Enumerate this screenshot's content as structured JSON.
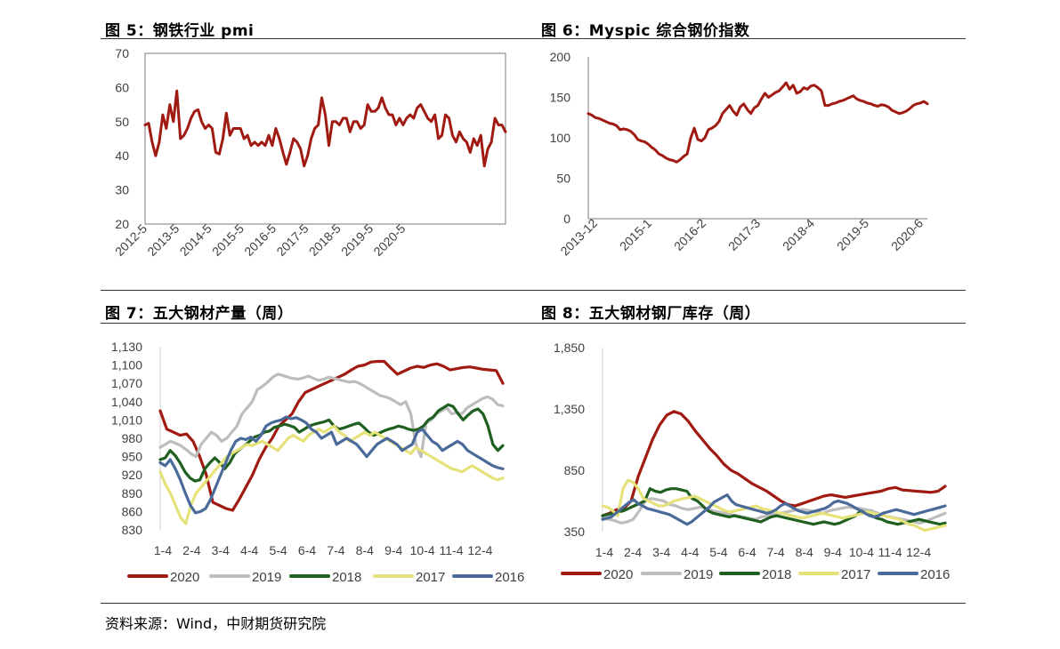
{
  "panels": [
    {
      "title": "图 5：钢铁行业 pmi"
    },
    {
      "title": "图 6：Myspic 综合钢价指数"
    },
    {
      "title": "图 7：五大钢材产量（周）"
    },
    {
      "title": "图 8：五大钢材钢厂库存（周）"
    }
  ],
  "source": "资料来源：Wind，中财期货研究院",
  "chart_data": [
    {
      "type": "line",
      "title": "",
      "xlabel": "",
      "ylabel": "",
      "ylim": [
        20,
        70
      ],
      "yticks": [
        "70",
        "60",
        "50",
        "40",
        "30",
        "20"
      ],
      "xticks": [
        "2012-5",
        "2013-5",
        "2014-5",
        "2015-5",
        "2016-5",
        "2017-5",
        "2018-5",
        "2019-5",
        "2020-5"
      ],
      "legend": "none",
      "grid": false,
      "series": [
        {
          "color": "#a01a12",
          "values": [
            49,
            49.5,
            44,
            40,
            44,
            52,
            48,
            55,
            50,
            59,
            45,
            46,
            48,
            51,
            53,
            53.5,
            50,
            48,
            49,
            48,
            41,
            40.5,
            45,
            52.5,
            46,
            48,
            48,
            48,
            45,
            46,
            43,
            44,
            43,
            44,
            43,
            46,
            43,
            48,
            45,
            41,
            37.5,
            41,
            45,
            44,
            42,
            37,
            40,
            45,
            48,
            49,
            57,
            52,
            43,
            50,
            50,
            49,
            51,
            51,
            47,
            50,
            50,
            48,
            49,
            55,
            53,
            53,
            54,
            57,
            54,
            52,
            52,
            49,
            51,
            49,
            51,
            52,
            51,
            54,
            55,
            53,
            51,
            50,
            52,
            45,
            46,
            52,
            51,
            46,
            44,
            47,
            45,
            44,
            41,
            45,
            43,
            46,
            37,
            42,
            44,
            51,
            49,
            49,
            47
          ]
        }
      ]
    },
    {
      "type": "line",
      "title": "",
      "xlabel": "",
      "ylabel": "",
      "ylim": [
        0,
        200
      ],
      "yticks": [
        "200",
        "150",
        "100",
        "50",
        "0"
      ],
      "xticks": [
        "2013-12",
        "2015-1",
        "2016-2",
        "2017-3",
        "2018-4",
        "2019-5",
        "2020-6"
      ],
      "legend": "none",
      "grid": false,
      "series": [
        {
          "color": "#a01a12",
          "values": [
            130,
            128,
            125,
            124,
            122,
            120,
            118,
            117,
            115,
            110,
            111,
            110,
            108,
            104,
            98,
            96,
            95,
            92,
            88,
            85,
            80,
            78,
            75,
            73,
            72,
            70,
            73,
            77,
            80,
            100,
            112,
            98,
            96,
            100,
            110,
            112,
            115,
            120,
            130,
            135,
            140,
            133,
            128,
            138,
            142,
            135,
            130,
            137,
            140,
            148,
            155,
            150,
            153,
            156,
            158,
            163,
            168,
            160,
            165,
            155,
            157,
            162,
            160,
            164,
            165,
            162,
            158,
            140,
            140,
            142,
            143,
            145,
            146,
            148,
            150,
            152,
            148,
            146,
            145,
            143,
            142,
            140,
            139,
            141,
            140,
            138,
            134,
            132,
            130,
            131,
            133,
            136,
            140,
            142,
            143,
            145,
            142
          ]
        }
      ]
    },
    {
      "type": "line",
      "title": "",
      "xlabel": "",
      "ylabel": "",
      "ylim": [
        830,
        1130
      ],
      "yticks": [
        "1,130",
        "1,100",
        "1,070",
        "1,040",
        "1,010",
        "980",
        "950",
        "920",
        "890",
        "860",
        "830"
      ],
      "xticks": [
        "1-4",
        "2-4",
        "3-4",
        "4-4",
        "5-4",
        "6-4",
        "7-4",
        "8-4",
        "9-4",
        "10-4",
        "11-4",
        "12-4"
      ],
      "legend": "bottom",
      "grid": false,
      "series": [
        {
          "name": "2020",
          "color": "#a01a12",
          "values": [
            1025,
            995,
            990,
            985,
            987,
            975,
            950,
            920,
            875,
            870,
            865,
            862,
            880,
            900,
            920,
            945,
            965,
            980,
            1000,
            1010,
            1020,
            1040,
            1055,
            1060,
            1065,
            1070,
            1075,
            1080,
            1085,
            1092,
            1098,
            1100,
            1105,
            1106,
            1106,
            1095,
            1085,
            1090,
            1095,
            1098,
            1096,
            1100,
            1102,
            1098,
            1092,
            1094,
            1096,
            1097,
            1095,
            1093,
            1092,
            1091,
            1070
          ]
        },
        {
          "name": "2019",
          "color": "#bdbdbd",
          "values": [
            965,
            970,
            975,
            972,
            968,
            962,
            955,
            950,
            970,
            980,
            990,
            985,
            975,
            980,
            990,
            1000,
            1020,
            1030,
            1040,
            1060,
            1065,
            1072,
            1080,
            1085,
            1083,
            1080,
            1078,
            1077,
            1079,
            1082,
            1078,
            1075,
            1077,
            1080,
            1078,
            1076,
            1074,
            1072,
            1073,
            1070,
            1065,
            1060,
            1055,
            1050,
            1048,
            1045,
            1040,
            1035,
            1040,
            1020,
            970,
            950,
            1005,
            1010,
            1020,
            1025,
            1030,
            1020,
            1022,
            1020,
            1030,
            1035,
            1040,
            1045,
            1048,
            1044,
            1035,
            1033
          ]
        },
        {
          "name": "2018",
          "color": "#1f5f1f",
          "values": [
            945,
            948,
            960,
            952,
            940,
            925,
            915,
            910,
            912,
            930,
            940,
            948,
            940,
            930,
            940,
            955,
            962,
            968,
            975,
            982,
            985,
            990,
            992,
            998,
            1000,
            1003,
            1001,
            998,
            990,
            995,
            1000,
            1003,
            1005,
            1007,
            1010,
            1000,
            995,
            997,
            1000,
            1003,
            1005,
            998,
            990,
            985,
            988,
            992,
            995,
            997,
            1000,
            998,
            995,
            993,
            995,
            1000,
            1010,
            1015,
            1025,
            1030,
            1035,
            1032,
            1020,
            1010,
            1018,
            1025,
            1028,
            1020,
            1000,
            970,
            960,
            968
          ]
        },
        {
          "name": "2017",
          "color": "#e6e27a",
          "values": [
            925,
            905,
            890,
            870,
            850,
            840,
            870,
            890,
            900,
            910,
            920,
            930,
            940,
            950,
            955,
            960,
            965,
            970,
            968,
            972,
            975,
            970,
            965,
            960,
            970,
            980,
            985,
            980,
            975,
            985,
            990,
            995,
            990,
            995,
            1000,
            990,
            985,
            975,
            980,
            985,
            990,
            985,
            990,
            985,
            980,
            975,
            970,
            965,
            960,
            955,
            965,
            960,
            955,
            950,
            945,
            940,
            935,
            930,
            928,
            925,
            930,
            935,
            930,
            925,
            920,
            915,
            912,
            915
          ]
        },
        {
          "name": "2016",
          "color": "#4a6a9a",
          "values": [
            940,
            935,
            945,
            930,
            912,
            890,
            870,
            858,
            860,
            865,
            880,
            900,
            920,
            940,
            960,
            975,
            980,
            978,
            982,
            975,
            985,
            1000,
            1005,
            1008,
            1010,
            1015,
            1012,
            1014,
            1010,
            1005,
            995,
            990,
            980,
            985,
            990,
            970,
            975,
            980,
            975,
            970,
            960,
            950,
            960,
            970,
            975,
            980,
            975,
            970,
            960,
            965,
            970,
            990,
            995,
            985,
            975,
            970,
            960,
            965,
            970,
            975,
            970,
            960,
            955,
            950,
            945,
            940,
            935,
            932,
            930
          ]
        }
      ]
    },
    {
      "type": "line",
      "title": "",
      "xlabel": "",
      "ylabel": "",
      "ylim": [
        350,
        1850
      ],
      "yticks": [
        "1,850",
        "1,350",
        "850",
        "350"
      ],
      "xticks": [
        "1-4",
        "2-4",
        "3-4",
        "4-4",
        "5-4",
        "6-4",
        "7-4",
        "8-4",
        "9-4",
        "10-4",
        "11-4",
        "12-4"
      ],
      "legend": "bottom",
      "grid": false,
      "series": [
        {
          "name": "2020",
          "color": "#a01a12",
          "values": [
            480,
            500,
            530,
            540,
            600,
            800,
            950,
            1100,
            1220,
            1300,
            1330,
            1310,
            1250,
            1170,
            1100,
            1030,
            970,
            900,
            850,
            820,
            780,
            740,
            710,
            680,
            640,
            600,
            570,
            560,
            580,
            600,
            620,
            640,
            650,
            640,
            630,
            640,
            650,
            660,
            670,
            680,
            700,
            710,
            690,
            685,
            680,
            675,
            670,
            680,
            720
          ]
        },
        {
          "name": "2019",
          "color": "#bdbdbd",
          "values": [
            460,
            450,
            440,
            420,
            430,
            450,
            520,
            600,
            620,
            610,
            600,
            570,
            560,
            540,
            530,
            540,
            550,
            540,
            520,
            510,
            500,
            490,
            480,
            470,
            460,
            450,
            470,
            480,
            490,
            500,
            510,
            520,
            530,
            530,
            520,
            510,
            500,
            520,
            530,
            540,
            550,
            545,
            540,
            530,
            520,
            500,
            480,
            470,
            460,
            450,
            440,
            430,
            420,
            440,
            460,
            480,
            500
          ]
        },
        {
          "name": "2018",
          "color": "#1f5f1f",
          "values": [
            480,
            490,
            500,
            510,
            520,
            540,
            560,
            580,
            600,
            700,
            680,
            670,
            690,
            700,
            700,
            690,
            680,
            620,
            600,
            560,
            520,
            500,
            490,
            480,
            470,
            480,
            470,
            460,
            450,
            440,
            430,
            450,
            470,
            480,
            470,
            460,
            450,
            440,
            430,
            420,
            410,
            420,
            430,
            420,
            410,
            420,
            440,
            460,
            480,
            520,
            500,
            480,
            460,
            450,
            430,
            420,
            410,
            420,
            430,
            440,
            450,
            440,
            430,
            420,
            410,
            420
          ]
        },
        {
          "name": "2017",
          "color": "#e6e27a",
          "values": [
            560,
            550,
            520,
            480,
            700,
            770,
            750,
            700,
            620,
            600,
            580,
            560,
            560,
            580,
            600,
            610,
            620,
            630,
            640,
            620,
            600,
            580,
            560,
            540,
            520,
            510,
            520,
            530,
            540,
            550,
            560,
            540,
            530,
            520,
            510,
            500,
            490,
            480,
            470,
            460,
            470,
            480,
            490,
            500,
            490,
            480,
            470,
            460,
            470,
            480,
            490,
            500,
            510,
            500,
            490,
            480,
            470,
            460,
            450,
            430,
            410,
            400,
            380,
            360,
            370,
            380,
            390,
            400
          ]
        },
        {
          "name": "2016",
          "color": "#4a6a9a",
          "values": [
            450,
            460,
            470,
            500,
            530,
            560,
            590,
            610,
            580,
            560,
            540,
            530,
            520,
            510,
            500,
            490,
            470,
            450,
            430,
            410,
            430,
            460,
            490,
            520,
            550,
            590,
            610,
            630,
            650,
            600,
            570,
            560,
            550,
            540,
            530,
            520,
            510,
            500,
            510,
            530,
            560,
            580,
            560,
            540,
            520,
            510,
            500,
            510,
            520,
            530,
            540,
            560,
            590,
            600,
            590,
            580,
            560,
            540,
            520,
            500,
            480,
            470,
            480,
            500,
            510,
            520,
            530,
            520,
            510,
            500,
            490,
            500,
            510,
            520,
            530,
            540,
            550,
            560
          ]
        }
      ]
    }
  ]
}
